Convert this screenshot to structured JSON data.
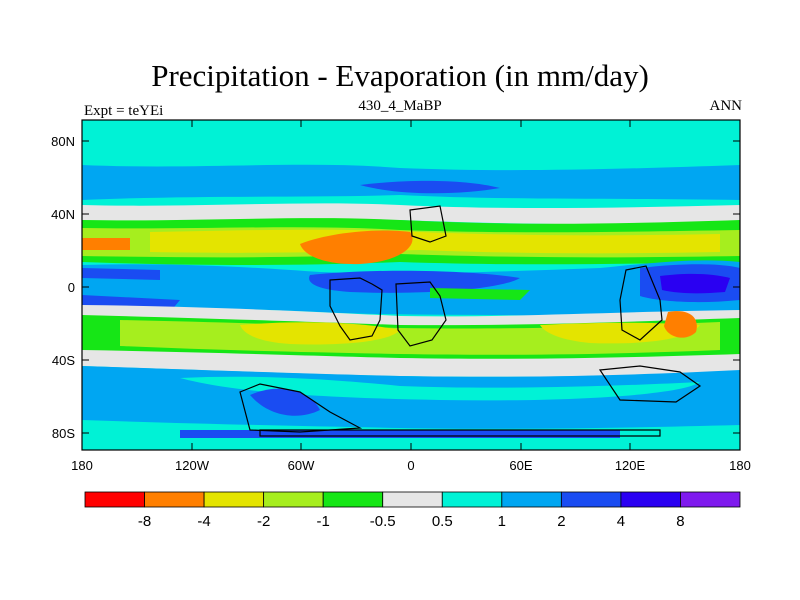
{
  "header": {
    "title": "Precipitation - Evaporation (in mm/day)",
    "left_label": "Expt = teYEi",
    "center_label": "430_4_MaBP",
    "right_label": "ANN"
  },
  "map": {
    "lat_ticks": [
      "80N",
      "40N",
      "0",
      "40S",
      "80S"
    ],
    "lon_ticks": [
      "180",
      "120W",
      "60W",
      "0",
      "60E",
      "120E",
      "180"
    ]
  },
  "colorbar": {
    "colors": [
      "#ff0000",
      "#ff7f00",
      "#e4e400",
      "#a6ee1e",
      "#16e616",
      "#e6e6e6",
      "#00f2d6",
      "#00a6f2",
      "#1a4cf2",
      "#2a00f2",
      "#7f1aee"
    ],
    "labels": [
      "-8",
      "-4",
      "-2",
      "-1",
      "-0.5",
      "0.5",
      "1",
      "2",
      "4",
      "8"
    ]
  }
}
